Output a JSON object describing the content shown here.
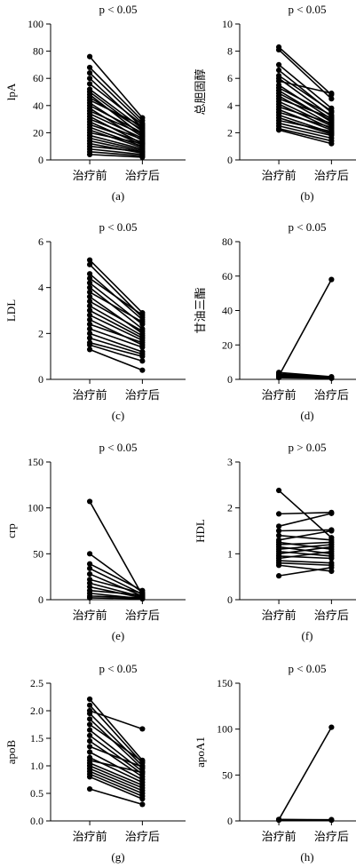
{
  "chart_data": [
    {
      "type": "line",
      "panel_label": "(a)",
      "title": "p < 0.05",
      "ylabel": "lpA",
      "categories": [
        "治疗前",
        "治疗后"
      ],
      "ylim": [
        0,
        100
      ],
      "yticks": [
        0,
        20,
        40,
        60,
        80,
        100
      ],
      "series": [
        {
          "values": [
            76,
            31
          ]
        },
        {
          "values": [
            68,
            29
          ]
        },
        {
          "values": [
            64,
            27
          ]
        },
        {
          "values": [
            60,
            24
          ]
        },
        {
          "values": [
            56,
            26
          ]
        },
        {
          "values": [
            52,
            23
          ]
        },
        {
          "values": [
            50,
            21
          ]
        },
        {
          "values": [
            48,
            18
          ]
        },
        {
          "values": [
            46,
            22
          ]
        },
        {
          "values": [
            44,
            25
          ]
        },
        {
          "values": [
            42,
            17
          ]
        },
        {
          "values": [
            40,
            20
          ]
        },
        {
          "values": [
            38,
            14
          ]
        },
        {
          "values": [
            36,
            19
          ]
        },
        {
          "values": [
            34,
            16
          ]
        },
        {
          "values": [
            32,
            12
          ]
        },
        {
          "values": [
            30,
            15
          ]
        },
        {
          "values": [
            28,
            11
          ]
        },
        {
          "values": [
            26,
            13
          ]
        },
        {
          "values": [
            24,
            10
          ]
        },
        {
          "values": [
            22,
            9
          ]
        },
        {
          "values": [
            20,
            12
          ]
        },
        {
          "values": [
            18,
            8
          ]
        },
        {
          "values": [
            16,
            7
          ]
        },
        {
          "values": [
            14,
            6
          ]
        },
        {
          "values": [
            12,
            5
          ]
        },
        {
          "values": [
            10,
            6
          ]
        },
        {
          "values": [
            8,
            4
          ]
        },
        {
          "values": [
            6,
            3
          ]
        },
        {
          "values": [
            4,
            2
          ]
        }
      ]
    },
    {
      "type": "line",
      "panel_label": "(b)",
      "title": "p < 0.05",
      "ylabel": "总胆固醇",
      "categories": [
        "治疗前",
        "治疗后"
      ],
      "ylim": [
        0,
        10
      ],
      "yticks": [
        0,
        2,
        4,
        6,
        8,
        10
      ],
      "series": [
        {
          "values": [
            8.3,
            4.8
          ]
        },
        {
          "values": [
            8.1,
            4.5
          ]
        },
        {
          "values": [
            7.0,
            3.8
          ]
        },
        {
          "values": [
            6.6,
            3.5
          ]
        },
        {
          "values": [
            6.2,
            3.6
          ]
        },
        {
          "values": [
            6.0,
            3.2
          ]
        },
        {
          "values": [
            5.8,
            4.9
          ]
        },
        {
          "values": [
            5.5,
            3.0
          ]
        },
        {
          "values": [
            5.3,
            3.3
          ]
        },
        {
          "values": [
            5.1,
            2.8
          ]
        },
        {
          "values": [
            4.9,
            2.9
          ]
        },
        {
          "values": [
            4.7,
            2.6
          ]
        },
        {
          "values": [
            4.5,
            3.1
          ]
        },
        {
          "values": [
            4.3,
            2.5
          ]
        },
        {
          "values": [
            4.1,
            2.3
          ]
        },
        {
          "values": [
            3.9,
            2.7
          ]
        },
        {
          "values": [
            3.7,
            2.2
          ]
        },
        {
          "values": [
            3.5,
            2.4
          ]
        },
        {
          "values": [
            3.3,
            2.0
          ]
        },
        {
          "values": [
            3.1,
            1.9
          ]
        },
        {
          "values": [
            2.9,
            2.1
          ]
        },
        {
          "values": [
            2.7,
            1.8
          ]
        },
        {
          "values": [
            2.5,
            1.6
          ]
        },
        {
          "values": [
            2.3,
            1.4
          ]
        },
        {
          "values": [
            2.2,
            1.2
          ]
        }
      ]
    },
    {
      "type": "line",
      "panel_label": "(c)",
      "title": "p < 0.05",
      "ylabel": "LDL",
      "categories": [
        "治疗前",
        "治疗后"
      ],
      "ylim": [
        0,
        6
      ],
      "yticks": [
        0,
        2,
        4,
        6
      ],
      "series": [
        {
          "values": [
            5.2,
            2.9
          ]
        },
        {
          "values": [
            5.0,
            2.7
          ]
        },
        {
          "values": [
            4.6,
            2.6
          ]
        },
        {
          "values": [
            4.4,
            2.8
          ]
        },
        {
          "values": [
            4.2,
            2.4
          ]
        },
        {
          "values": [
            4.0,
            2.2
          ]
        },
        {
          "values": [
            3.8,
            2.5
          ]
        },
        {
          "values": [
            3.6,
            2.0
          ]
        },
        {
          "values": [
            3.4,
            2.1
          ]
        },
        {
          "values": [
            3.2,
            1.9
          ]
        },
        {
          "values": [
            3.0,
            1.8
          ]
        },
        {
          "values": [
            2.8,
            1.7
          ]
        },
        {
          "values": [
            2.6,
            1.5
          ]
        },
        {
          "values": [
            2.4,
            1.6
          ]
        },
        {
          "values": [
            2.2,
            1.4
          ]
        },
        {
          "values": [
            2.0,
            1.2
          ]
        },
        {
          "values": [
            1.8,
            1.1
          ]
        },
        {
          "values": [
            1.6,
            1.0
          ]
        },
        {
          "values": [
            1.5,
            0.8
          ]
        },
        {
          "values": [
            1.3,
            0.4
          ]
        }
      ]
    },
    {
      "type": "line",
      "panel_label": "(d)",
      "title": "p < 0.05",
      "ylabel": "甘油三酯",
      "categories": [
        "治疗前",
        "治疗后"
      ],
      "ylim": [
        0,
        80
      ],
      "yticks": [
        0,
        20,
        40,
        60,
        80
      ],
      "series": [
        {
          "values": [
            2.0,
            58
          ]
        },
        {
          "values": [
            4.0,
            1.5
          ]
        },
        {
          "values": [
            3.2,
            1.2
          ]
        },
        {
          "values": [
            2.6,
            1.0
          ]
        },
        {
          "values": [
            2.2,
            0.9
          ]
        },
        {
          "values": [
            1.8,
            0.8
          ]
        },
        {
          "values": [
            1.4,
            0.7
          ]
        },
        {
          "values": [
            1.0,
            0.6
          ]
        }
      ]
    },
    {
      "type": "line",
      "panel_label": "(e)",
      "title": "p < 0.05",
      "ylabel": "crp",
      "categories": [
        "治疗前",
        "治疗后"
      ],
      "ylim": [
        0,
        150
      ],
      "yticks": [
        0,
        50,
        100,
        150
      ],
      "series": [
        {
          "values": [
            107,
            5
          ]
        },
        {
          "values": [
            50,
            8
          ]
        },
        {
          "values": [
            39,
            10
          ]
        },
        {
          "values": [
            34,
            6
          ]
        },
        {
          "values": [
            28,
            4
          ]
        },
        {
          "values": [
            22,
            7
          ]
        },
        {
          "values": [
            18,
            3
          ]
        },
        {
          "values": [
            14,
            2
          ]
        },
        {
          "values": [
            10,
            5
          ]
        },
        {
          "values": [
            7,
            1
          ]
        },
        {
          "values": [
            4,
            2
          ]
        },
        {
          "values": [
            2,
            1
          ]
        }
      ]
    },
    {
      "type": "line",
      "panel_label": "(f)",
      "title": "p > 0.05",
      "ylabel": "HDL",
      "categories": [
        "治疗前",
        "治疗后"
      ],
      "ylim": [
        0,
        3
      ],
      "yticks": [
        0,
        1,
        2,
        3
      ],
      "series": [
        {
          "values": [
            2.38,
            1.35
          ]
        },
        {
          "values": [
            1.87,
            1.9
          ]
        },
        {
          "values": [
            1.6,
            1.88
          ]
        },
        {
          "values": [
            1.5,
            1.52
          ]
        },
        {
          "values": [
            1.4,
            1.3
          ]
        },
        {
          "values": [
            1.3,
            1.5
          ]
        },
        {
          "values": [
            1.25,
            1.1
          ]
        },
        {
          "values": [
            1.2,
            1.25
          ]
        },
        {
          "values": [
            1.15,
            1.0
          ]
        },
        {
          "values": [
            1.1,
            1.2
          ]
        },
        {
          "values": [
            1.05,
            0.95
          ]
        },
        {
          "values": [
            1.0,
            1.15
          ]
        },
        {
          "values": [
            0.95,
            0.9
          ]
        },
        {
          "values": [
            0.9,
            1.05
          ]
        },
        {
          "values": [
            0.85,
            0.8
          ]
        },
        {
          "values": [
            0.8,
            0.75
          ]
        },
        {
          "values": [
            0.75,
            0.62
          ]
        },
        {
          "values": [
            0.52,
            0.7
          ]
        }
      ]
    },
    {
      "type": "line",
      "panel_label": "(g)",
      "title": "p < 0.05",
      "ylabel": "apoB",
      "categories": [
        "治疗前",
        "治疗后"
      ],
      "ylim": [
        0,
        2.5
      ],
      "yticks": [
        0.0,
        0.5,
        1.0,
        1.5,
        2.0,
        2.5
      ],
      "series": [
        {
          "values": [
            2.21,
            1.1
          ]
        },
        {
          "values": [
            2.1,
            1.05
          ]
        },
        {
          "values": [
            2.0,
            1.67
          ]
        },
        {
          "values": [
            1.95,
            1.0
          ]
        },
        {
          "values": [
            1.85,
            0.95
          ]
        },
        {
          "values": [
            1.75,
            1.08
          ]
        },
        {
          "values": [
            1.65,
            0.9
          ]
        },
        {
          "values": [
            1.55,
            0.85
          ]
        },
        {
          "values": [
            1.45,
            0.8
          ]
        },
        {
          "values": [
            1.35,
            0.98
          ]
        },
        {
          "values": [
            1.25,
            0.75
          ]
        },
        {
          "values": [
            1.15,
            0.7
          ]
        },
        {
          "values": [
            1.1,
            0.88
          ]
        },
        {
          "values": [
            1.05,
            0.65
          ]
        },
        {
          "values": [
            1.0,
            0.6
          ]
        },
        {
          "values": [
            0.95,
            0.55
          ]
        },
        {
          "values": [
            0.9,
            0.5
          ]
        },
        {
          "values": [
            0.85,
            0.45
          ]
        },
        {
          "values": [
            0.8,
            0.4
          ]
        },
        {
          "values": [
            0.58,
            0.3
          ]
        }
      ]
    },
    {
      "type": "line",
      "panel_label": "(h)",
      "title": "p < 0.05",
      "ylabel": "apoA1",
      "categories": [
        "治疗前",
        "治疗后"
      ],
      "ylim": [
        0,
        150
      ],
      "yticks": [
        0,
        50,
        100,
        150
      ],
      "series": [
        {
          "values": [
            1.4,
            102
          ]
        },
        {
          "values": [
            1.6,
            1.2
          ]
        },
        {
          "values": [
            1.2,
            1.0
          ]
        },
        {
          "values": [
            1.0,
            1.3
          ]
        },
        {
          "values": [
            0.9,
            0.8
          ]
        }
      ]
    }
  ]
}
